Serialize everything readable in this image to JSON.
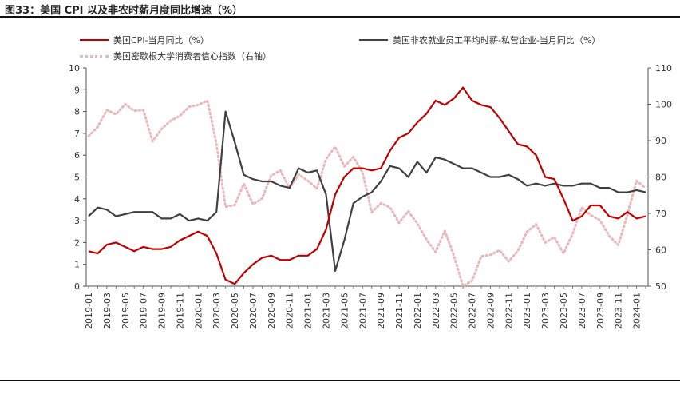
{
  "title": "图33：美国 CPI 以及非农时薪月度同比增速（%）",
  "chart_data": {
    "type": "line",
    "title": "",
    "x": [
      "2019-01",
      "2019-02",
      "2019-03",
      "2019-04",
      "2019-05",
      "2019-06",
      "2019-07",
      "2019-08",
      "2019-09",
      "2019-10",
      "2019-11",
      "2019-12",
      "2020-01",
      "2020-02",
      "2020-03",
      "2020-04",
      "2020-05",
      "2020-06",
      "2020-07",
      "2020-08",
      "2020-09",
      "2020-10",
      "2020-11",
      "2020-12",
      "2021-01",
      "2021-02",
      "2021-03",
      "2021-04",
      "2021-05",
      "2021-06",
      "2021-07",
      "2021-08",
      "2021-09",
      "2021-10",
      "2021-11",
      "2021-12",
      "2022-01",
      "2022-02",
      "2022-03",
      "2022-04",
      "2022-05",
      "2022-06",
      "2022-07",
      "2022-08",
      "2022-09",
      "2022-10",
      "2022-11",
      "2022-12",
      "2023-01",
      "2023-02",
      "2023-03",
      "2023-04",
      "2023-05",
      "2023-06",
      "2023-07",
      "2023-08",
      "2023-09",
      "2023-10",
      "2023-11",
      "2023-12",
      "2024-01",
      "2024-02"
    ],
    "tick_labels": [
      "2019-01",
      "2019-03",
      "2019-05",
      "2019-07",
      "2019-09",
      "2019-11",
      "2020-01",
      "2020-03",
      "2020-05",
      "2020-07",
      "2020-09",
      "2020-11",
      "2021-01",
      "2021-03",
      "2021-05",
      "2021-07",
      "2021-09",
      "2021-11",
      "2022-01",
      "2022-03",
      "2022-05",
      "2022-07",
      "2022-09",
      "2022-11",
      "2023-01",
      "2023-03",
      "2023-05",
      "2023-07",
      "2023-09",
      "2023-11",
      "2024-01"
    ],
    "ylim_left": [
      0,
      10
    ],
    "yticks_left": [
      "0",
      "1",
      "2",
      "3",
      "4",
      "5",
      "6",
      "7",
      "8",
      "9",
      "10"
    ],
    "ylim_right": [
      50,
      110
    ],
    "yticks_right": [
      "50",
      "60",
      "70",
      "80",
      "90",
      "100",
      "110"
    ],
    "legend_placement": "top",
    "series": [
      {
        "name": "美国CPI-当月同比（%）",
        "axis": "left",
        "color": "#c00000",
        "style": "solid",
        "values": [
          1.6,
          1.5,
          1.9,
          2.0,
          1.8,
          1.6,
          1.8,
          1.7,
          1.7,
          1.8,
          2.1,
          2.3,
          2.5,
          2.3,
          1.5,
          0.3,
          0.1,
          0.6,
          1.0,
          1.3,
          1.4,
          1.2,
          1.2,
          1.4,
          1.4,
          1.7,
          2.6,
          4.2,
          5.0,
          5.4,
          5.4,
          5.3,
          5.4,
          6.2,
          6.8,
          7.0,
          7.5,
          7.9,
          8.5,
          8.3,
          8.6,
          9.1,
          8.5,
          8.3,
          8.2,
          7.7,
          7.1,
          6.5,
          6.4,
          6.0,
          5.0,
          4.9,
          4.0,
          3.0,
          3.2,
          3.7,
          3.7,
          3.2,
          3.1,
          3.4,
          3.1,
          3.2
        ]
      },
      {
        "name": "美国非农就业员工平均时薪-私营企业-当月同比（%）",
        "axis": "left",
        "color": "#404040",
        "style": "solid",
        "values": [
          3.2,
          3.6,
          3.5,
          3.2,
          3.3,
          3.4,
          3.4,
          3.4,
          3.1,
          3.1,
          3.3,
          3.0,
          3.1,
          3.0,
          3.4,
          8.0,
          6.6,
          5.1,
          4.9,
          4.8,
          4.8,
          4.6,
          4.5,
          5.4,
          5.2,
          5.3,
          4.2,
          0.7,
          2.1,
          3.8,
          4.1,
          4.3,
          4.8,
          5.5,
          5.4,
          5.0,
          5.7,
          5.2,
          5.9,
          5.8,
          5.6,
          5.4,
          5.4,
          5.2,
          5.0,
          5.0,
          5.1,
          4.9,
          4.6,
          4.7,
          4.6,
          4.7,
          4.6,
          4.6,
          4.7,
          4.7,
          4.5,
          4.5,
          4.3,
          4.3,
          4.4,
          4.3
        ]
      },
      {
        "name": "美国密歇根大学消费者信心指数（右轴）",
        "axis": "right",
        "color": "#e8b8bc",
        "style": "dotted",
        "values": [
          91.2,
          93.8,
          98.4,
          97.2,
          100.0,
          98.2,
          98.4,
          89.8,
          93.2,
          95.5,
          96.8,
          99.3,
          99.8,
          101.0,
          89.1,
          71.8,
          72.3,
          78.1,
          72.5,
          74.1,
          80.4,
          81.8,
          76.9,
          80.7,
          79.0,
          76.8,
          84.9,
          88.3,
          82.9,
          85.5,
          81.2,
          70.3,
          72.8,
          71.7,
          67.4,
          70.6,
          67.2,
          62.8,
          59.4,
          65.2,
          58.4,
          50.0,
          51.5,
          58.2,
          58.6,
          59.9,
          56.8,
          59.7,
          64.9,
          67.0,
          62.0,
          63.5,
          59.0,
          64.4,
          71.6,
          69.5,
          68.1,
          63.8,
          61.3,
          69.7,
          79.0,
          76.9
        ]
      }
    ]
  }
}
